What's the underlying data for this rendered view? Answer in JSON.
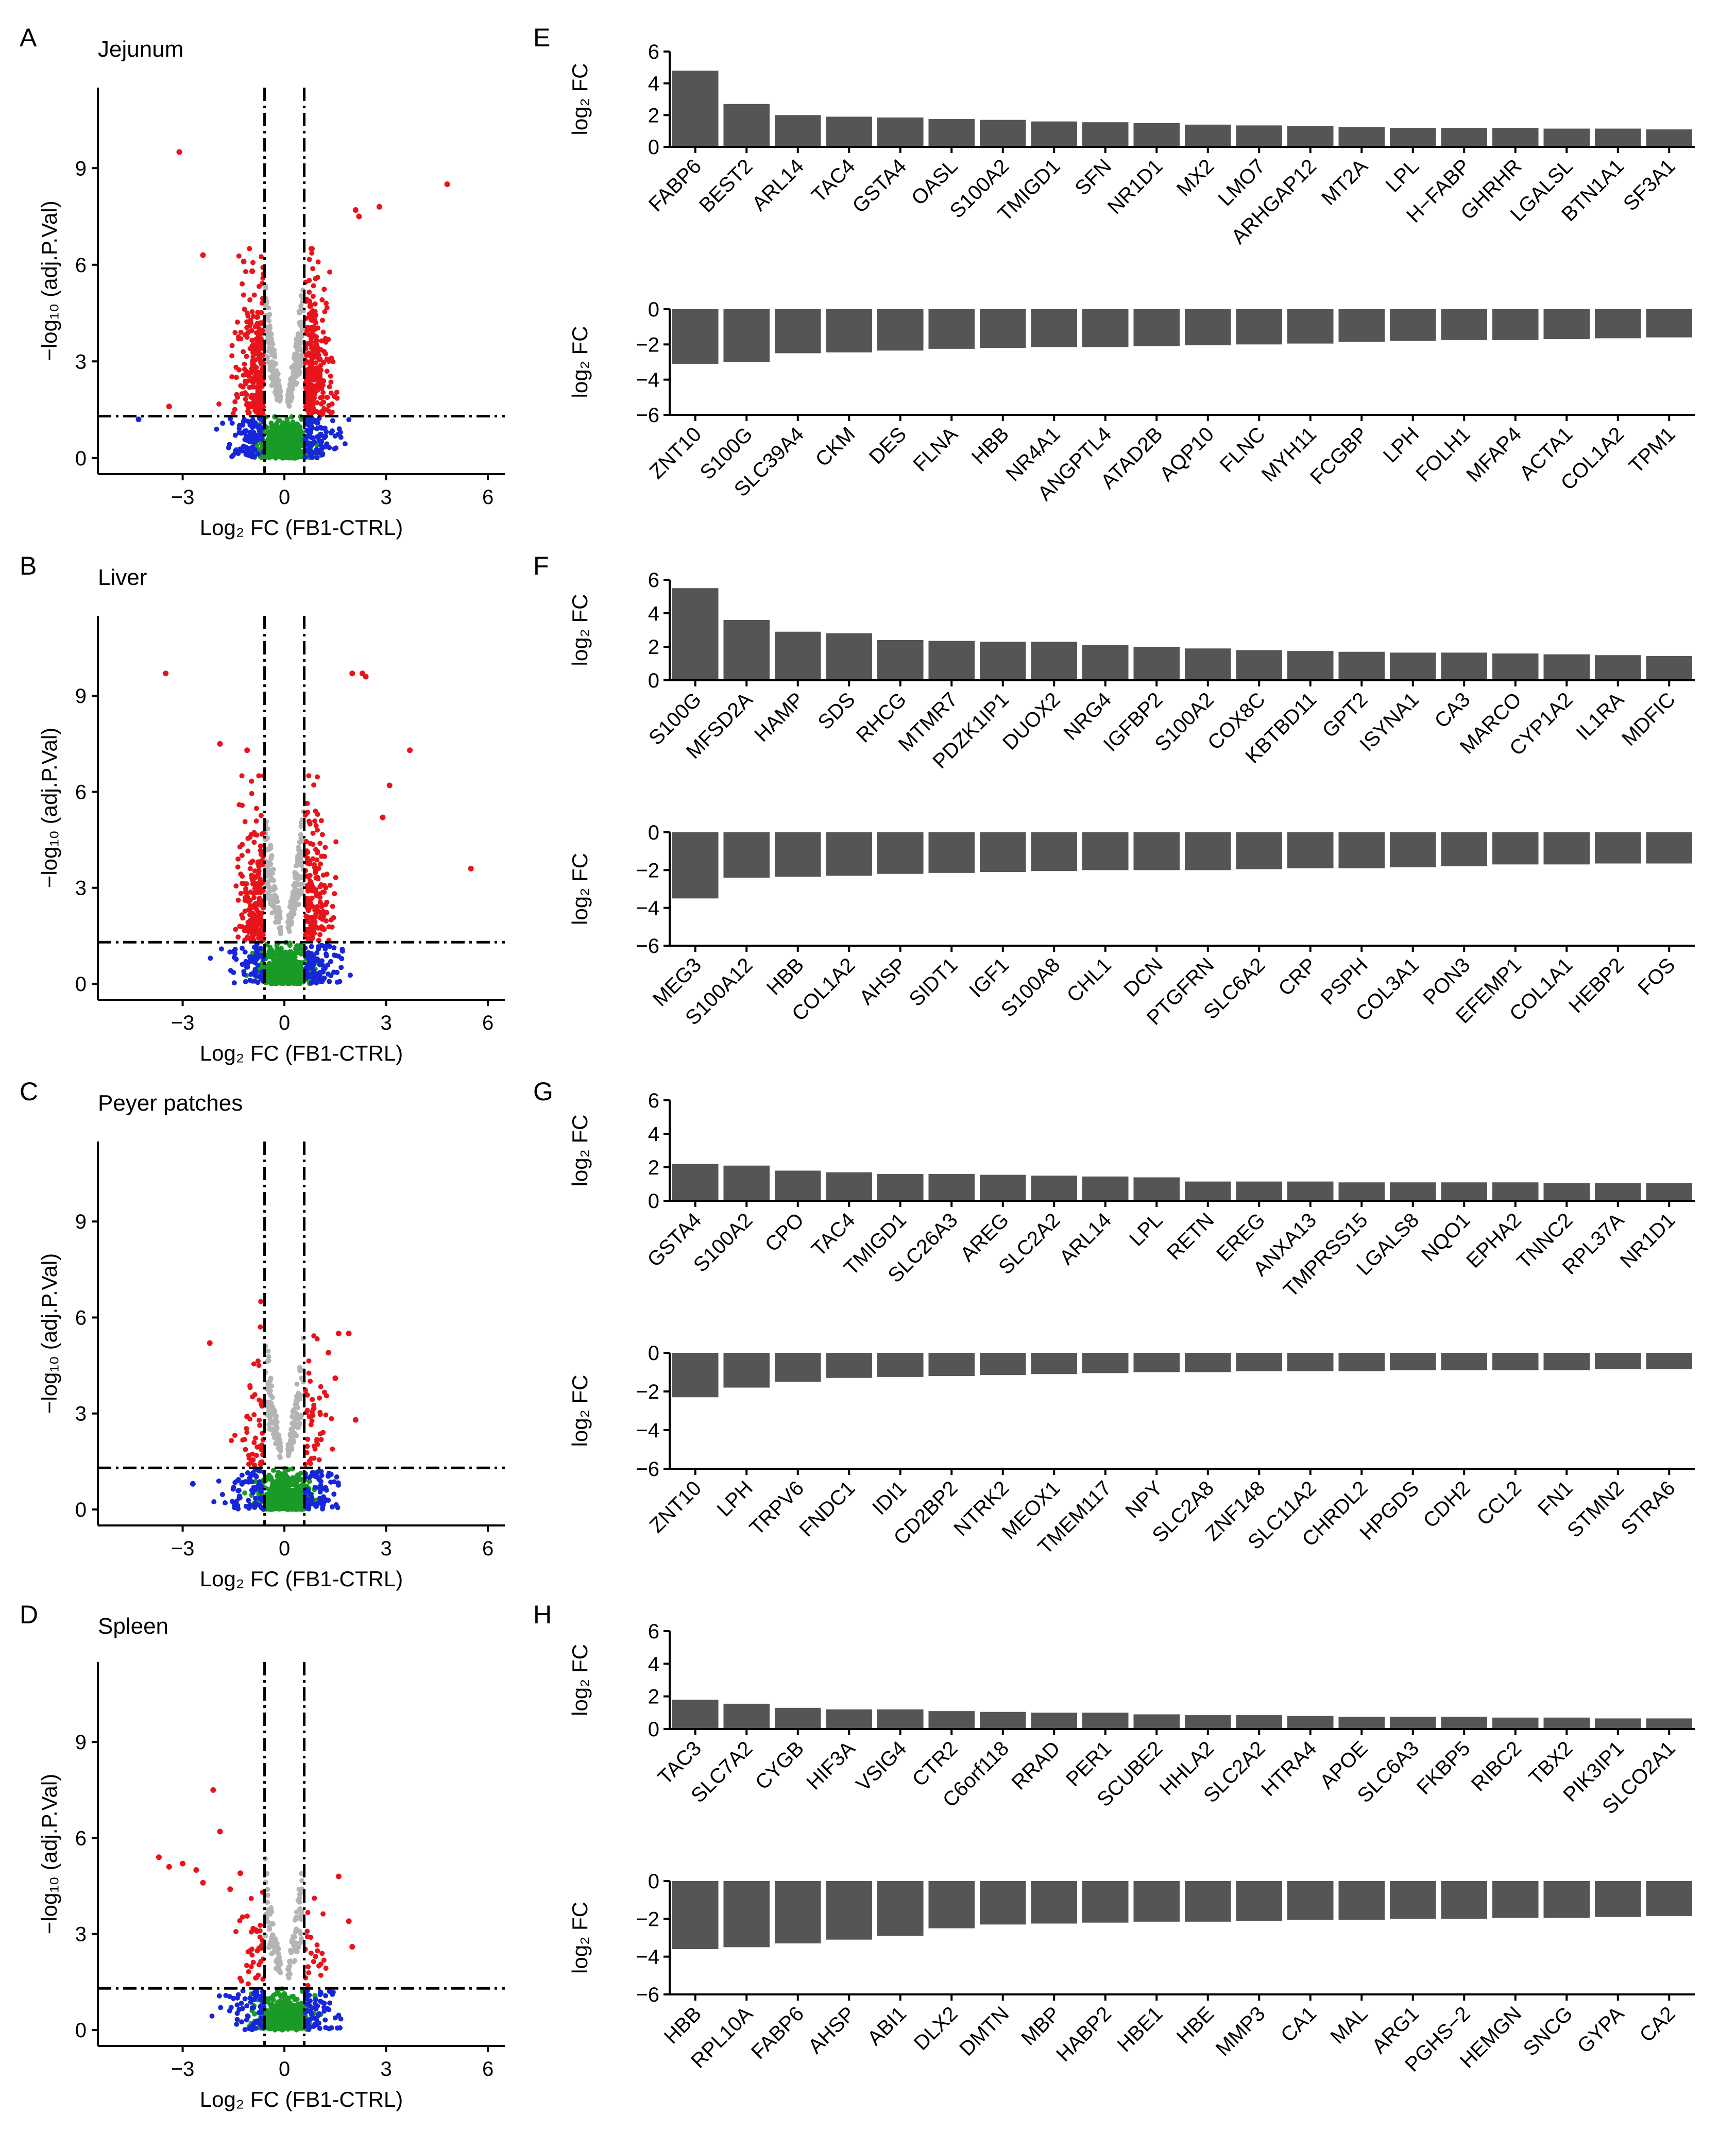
{
  "figure": {
    "volcano_x_label": "Log₂ FC (FB1-CTRL)",
    "volcano_y_label": "−log₁₀ (adj.P.Val)",
    "bar_y_label": "log₂ FC"
  },
  "chart_data": [
    {
      "type": "scatter",
      "panel": "A",
      "title": "Jejunum",
      "xlabel": "Log2 FC (FB1-CTRL)",
      "ylabel": "-log10 (adj.P.Val)",
      "xlim": [
        -5.5,
        6.5
      ],
      "ylim": [
        -0.5,
        11.5
      ],
      "xticks": [
        -3,
        0,
        3,
        6
      ],
      "yticks": [
        0,
        3,
        6,
        9
      ],
      "fc_threshold": [
        -0.585,
        0.585
      ],
      "p_threshold": 1.3,
      "colors": {
        "significant": "#e8141b",
        "fc_only": "#1726d8",
        "p_only": "#b4b4b4",
        "none": "#1a9a26"
      },
      "highlighted_points": [
        {
          "x": 4.8,
          "y": 8.5
        },
        {
          "x": 2.8,
          "y": 7.8
        },
        {
          "x": 2.1,
          "y": 7.7
        },
        {
          "x": 2.2,
          "y": 7.5
        },
        {
          "x": -3.1,
          "y": 9.5
        },
        {
          "x": -2.4,
          "y": 6.3
        },
        {
          "x": -1.2,
          "y": 6.1
        },
        {
          "x": -0.95,
          "y": 5.8
        },
        {
          "x": -3.4,
          "y": 1.6
        },
        {
          "x": -4.3,
          "y": 1.2
        }
      ]
    },
    {
      "type": "bar",
      "panel": "E",
      "direction": "up",
      "ylabel": "log2 FC",
      "ylim": [
        0,
        6
      ],
      "yticks": [
        0,
        2,
        4,
        6
      ],
      "categories": [
        "FABP6",
        "BEST2",
        "ARL14",
        "TAC4",
        "GSTA4",
        "OASL",
        "S100A2",
        "TMIGD1",
        "SFN",
        "NR1D1",
        "MX2",
        "LMO7",
        "ARHGAP12",
        "MT2A",
        "LPL",
        "H−FABP",
        "GHRHR",
        "LGALSL",
        "BTN1A1",
        "SF3A1"
      ],
      "values": [
        4.8,
        2.7,
        2.0,
        1.9,
        1.85,
        1.75,
        1.7,
        1.6,
        1.55,
        1.5,
        1.4,
        1.35,
        1.3,
        1.25,
        1.2,
        1.2,
        1.2,
        1.15,
        1.15,
        1.1
      ]
    },
    {
      "type": "bar",
      "panel": "E",
      "direction": "down",
      "ylabel": "log2 FC",
      "ylim": [
        -6,
        0
      ],
      "yticks": [
        0,
        -2,
        -4,
        -6
      ],
      "categories": [
        "ZNT10",
        "S100G",
        "SLC39A4",
        "CKM",
        "DES",
        "FLNA",
        "HBB",
        "NR4A1",
        "ANGPTL4",
        "ATAD2B",
        "AQP10",
        "FLNC",
        "MYH11",
        "FCGBP",
        "LPH",
        "FOLH1",
        "MFAP4",
        "ACTA1",
        "COL1A2",
        "TPM1"
      ],
      "values": [
        -3.1,
        -3.0,
        -2.5,
        -2.45,
        -2.35,
        -2.25,
        -2.2,
        -2.15,
        -2.15,
        -2.1,
        -2.05,
        -2.0,
        -1.95,
        -1.85,
        -1.8,
        -1.75,
        -1.75,
        -1.7,
        -1.65,
        -1.6
      ]
    },
    {
      "type": "scatter",
      "panel": "B",
      "title": "Liver",
      "xlabel": "Log2 FC (FB1-CTRL)",
      "ylabel": "-log10 (adj.P.Val)",
      "xlim": [
        -5.5,
        6.5
      ],
      "ylim": [
        -0.5,
        11.5
      ],
      "xticks": [
        -3,
        0,
        3,
        6
      ],
      "yticks": [
        0,
        3,
        6,
        9
      ],
      "fc_threshold": [
        -0.585,
        0.585
      ],
      "p_threshold": 1.3,
      "colors": {
        "significant": "#e8141b",
        "fc_only": "#1726d8",
        "p_only": "#b4b4b4",
        "none": "#1a9a26"
      },
      "highlighted_points": [
        {
          "x": -3.5,
          "y": 9.7
        },
        {
          "x": 2.0,
          "y": 9.7
        },
        {
          "x": 2.3,
          "y": 9.7
        },
        {
          "x": 2.4,
          "y": 9.6
        },
        {
          "x": 3.7,
          "y": 7.3
        },
        {
          "x": 5.5,
          "y": 3.6
        },
        {
          "x": 2.9,
          "y": 5.2
        },
        {
          "x": 3.1,
          "y": 6.2
        },
        {
          "x": -1.9,
          "y": 7.5
        },
        {
          "x": -1.1,
          "y": 7.3
        }
      ]
    },
    {
      "type": "bar",
      "panel": "F",
      "direction": "up",
      "ylabel": "log2 FC",
      "ylim": [
        0,
        6
      ],
      "yticks": [
        0,
        2,
        4,
        6
      ],
      "categories": [
        "S100G",
        "MFSD2A",
        "HAMP",
        "SDS",
        "RHCG",
        "MTMR7",
        "PDZK1IP1",
        "DUOX2",
        "NRG4",
        "IGFBP2",
        "S100A2",
        "COX8C",
        "KBTBD11",
        "GPT2",
        "ISYNA1",
        "CA3",
        "MARCO",
        "CYP1A2",
        "IL1RA",
        "MDFIC"
      ],
      "values": [
        5.5,
        3.6,
        2.9,
        2.8,
        2.4,
        2.35,
        2.3,
        2.3,
        2.1,
        2.0,
        1.9,
        1.8,
        1.75,
        1.7,
        1.65,
        1.65,
        1.6,
        1.55,
        1.5,
        1.45
      ]
    },
    {
      "type": "bar",
      "panel": "F",
      "direction": "down",
      "ylabel": "log2 FC",
      "ylim": [
        -6,
        0
      ],
      "yticks": [
        0,
        -2,
        -4,
        -6
      ],
      "categories": [
        "MEG3",
        "S100A12",
        "HBB",
        "COL1A2",
        "AHSP",
        "SIDT1",
        "IGF1",
        "S100A8",
        "CHL1",
        "DCN",
        "PTGFRN",
        "SLC6A2",
        "CRP",
        "PSPH",
        "COL3A1",
        "PON3",
        "EFEMP1",
        "COL1A1",
        "HEBP2",
        "FOS"
      ],
      "values": [
        -3.5,
        -2.4,
        -2.35,
        -2.3,
        -2.2,
        -2.15,
        -2.1,
        -2.05,
        -2.0,
        -2.0,
        -2.0,
        -1.95,
        -1.9,
        -1.9,
        -1.85,
        -1.8,
        -1.7,
        -1.7,
        -1.65,
        -1.65
      ]
    },
    {
      "type": "scatter",
      "panel": "C",
      "title": "Peyer patches",
      "xlabel": "Log2 FC (FB1-CTRL)",
      "ylabel": "-log10 (adj.P.Val)",
      "xlim": [
        -5.5,
        6.5
      ],
      "ylim": [
        -0.5,
        11.5
      ],
      "xticks": [
        -3,
        0,
        3,
        6
      ],
      "yticks": [
        0,
        3,
        6,
        9
      ],
      "fc_threshold": [
        -0.585,
        0.585
      ],
      "p_threshold": 1.3,
      "colors": {
        "significant": "#e8141b",
        "fc_only": "#1726d8",
        "p_only": "#b4b4b4",
        "none": "#1a9a26"
      },
      "highlighted_points": [
        {
          "x": -2.2,
          "y": 5.2
        },
        {
          "x": 1.6,
          "y": 5.5
        },
        {
          "x": 1.9,
          "y": 5.5
        },
        {
          "x": 1.3,
          "y": 4.9
        },
        {
          "x": 1.5,
          "y": 4.1
        },
        {
          "x": 2.1,
          "y": 2.8
        },
        {
          "x": -1.1,
          "y": 2.9
        },
        {
          "x": -2.7,
          "y": 0.8
        }
      ]
    },
    {
      "type": "bar",
      "panel": "G",
      "direction": "up",
      "ylabel": "log2 FC",
      "ylim": [
        0,
        6
      ],
      "yticks": [
        0,
        2,
        4,
        6
      ],
      "categories": [
        "GSTA4",
        "S100A2",
        "CPO",
        "TAC4",
        "TMIGD1",
        "SLC26A3",
        "AREG",
        "SLC2A2",
        "ARL14",
        "LPL",
        "RETN",
        "EREG",
        "ANXA13",
        "TMPRSS15",
        "LGALS8",
        "NQO1",
        "EPHA2",
        "TNNC2",
        "RPL37A",
        "NR1D1"
      ],
      "values": [
        2.2,
        2.1,
        1.8,
        1.7,
        1.6,
        1.6,
        1.55,
        1.5,
        1.45,
        1.4,
        1.15,
        1.15,
        1.15,
        1.1,
        1.1,
        1.1,
        1.1,
        1.05,
        1.05,
        1.05
      ]
    },
    {
      "type": "bar",
      "panel": "G",
      "direction": "down",
      "ylabel": "log2 FC",
      "ylim": [
        -6,
        0
      ],
      "yticks": [
        0,
        -2,
        -4,
        -6
      ],
      "categories": [
        "ZNT10",
        "LPH",
        "TRPV6",
        "FNDC1",
        "IDI1",
        "CD2BP2",
        "NTRK2",
        "MEOX1",
        "TMEM117",
        "NPY",
        "SLC2A8",
        "ZNF148",
        "SLC11A2",
        "CHRDL2",
        "HPGDS",
        "CDH2",
        "CCL2",
        "FN1",
        "STMN2",
        "STRA6"
      ],
      "values": [
        -2.3,
        -1.8,
        -1.5,
        -1.3,
        -1.25,
        -1.2,
        -1.15,
        -1.1,
        -1.05,
        -1.0,
        -1.0,
        -0.95,
        -0.95,
        -0.95,
        -0.9,
        -0.9,
        -0.9,
        -0.9,
        -0.85,
        -0.85
      ]
    },
    {
      "type": "scatter",
      "panel": "D",
      "title": "Spleen",
      "xlabel": "Log2 FC (FB1-CTRL)",
      "ylabel": "-log10 (adj.P.Val)",
      "xlim": [
        -5.5,
        6.5
      ],
      "ylim": [
        -0.5,
        11.5
      ],
      "xticks": [
        -3,
        0,
        3,
        6
      ],
      "yticks": [
        0,
        3,
        6,
        9
      ],
      "fc_threshold": [
        -0.585,
        0.585
      ],
      "p_threshold": 1.3,
      "colors": {
        "significant": "#e8141b",
        "fc_only": "#1726d8",
        "p_only": "#b4b4b4",
        "none": "#1a9a26"
      },
      "highlighted_points": [
        {
          "x": -2.1,
          "y": 7.5
        },
        {
          "x": -1.9,
          "y": 6.2
        },
        {
          "x": -3.7,
          "y": 5.4
        },
        {
          "x": -3.4,
          "y": 5.1
        },
        {
          "x": -3.0,
          "y": 5.2
        },
        {
          "x": -2.6,
          "y": 5.0
        },
        {
          "x": -2.4,
          "y": 4.6
        },
        {
          "x": -1.6,
          "y": 4.4
        },
        {
          "x": -1.3,
          "y": 4.9
        },
        {
          "x": 1.6,
          "y": 4.8
        },
        {
          "x": 1.9,
          "y": 3.4
        },
        {
          "x": 2.0,
          "y": 2.6
        }
      ]
    },
    {
      "type": "bar",
      "panel": "H",
      "direction": "up",
      "ylabel": "log2 FC",
      "ylim": [
        0,
        6
      ],
      "yticks": [
        0,
        2,
        4,
        6
      ],
      "categories": [
        "TAC3",
        "SLC7A2",
        "CYGB",
        "HIF3A",
        "VSIG4",
        "CTR2",
        "C6orf118",
        "RRAD",
        "PER1",
        "SCUBE2",
        "HHLA2",
        "SLC2A2",
        "HTRA4",
        "APOE",
        "SLC6A3",
        "FKBP5",
        "RIBC2",
        "TBX2",
        "PIK3IP1",
        "SLCO2A1"
      ],
      "values": [
        1.8,
        1.55,
        1.3,
        1.2,
        1.2,
        1.1,
        1.05,
        1.0,
        1.0,
        0.9,
        0.85,
        0.85,
        0.8,
        0.75,
        0.75,
        0.75,
        0.7,
        0.7,
        0.65,
        0.65
      ]
    },
    {
      "type": "bar",
      "panel": "H",
      "direction": "down",
      "ylabel": "log2 FC",
      "ylim": [
        -6,
        0
      ],
      "yticks": [
        0,
        -2,
        -4,
        -6
      ],
      "categories": [
        "HBB",
        "RPL10A",
        "FABP6",
        "AHSP",
        "ABI1",
        "DLX2",
        "DMTN",
        "MBP",
        "HABP2",
        "HBE1",
        "HBE",
        "MMP3",
        "CA1",
        "MAL",
        "ARG1",
        "PGHS−2",
        "HEMGN",
        "SNCG",
        "GYPA",
        "CA2"
      ],
      "values": [
        -3.6,
        -3.5,
        -3.3,
        -3.1,
        -2.9,
        -2.5,
        -2.3,
        -2.25,
        -2.2,
        -2.15,
        -2.15,
        -2.1,
        -2.05,
        -2.05,
        -2.0,
        -2.0,
        -1.95,
        -1.95,
        -1.9,
        -1.85
      ]
    }
  ]
}
